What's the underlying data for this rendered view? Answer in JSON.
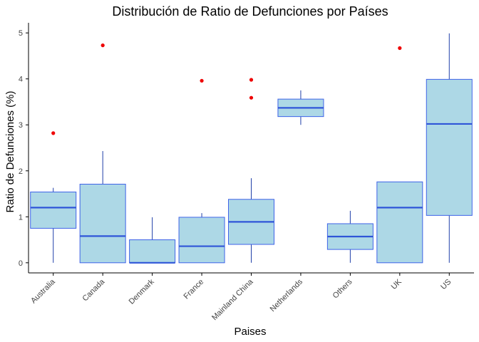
{
  "chart_data": {
    "type": "boxplot",
    "title": "Distribución de Ratio de Defunciones por Países",
    "xlabel": "Paises",
    "ylabel": "Ratio de Defunciones (%)",
    "ylim": [
      -0.22,
      5.22
    ],
    "yticks": [
      0,
      1,
      2,
      3,
      4,
      5
    ],
    "grid": false,
    "colors": {
      "box_fill": "#add8e6",
      "box_stroke": "#3f63e8",
      "median": "#2f55d8",
      "whisker": "#1f3fa8",
      "outlier": "#ee0000",
      "axis": "#000000"
    },
    "categories": [
      "Australia",
      "Canada",
      "Denmark",
      "France",
      "Mainland China",
      "Netherlands",
      "Others",
      "UK",
      "US"
    ],
    "boxes": [
      {
        "category": "Australia",
        "whisker_low": 0.0,
        "q1": 0.75,
        "median": 1.2,
        "q3": 1.54,
        "whisker_high": 1.63,
        "outliers": [
          2.82
        ]
      },
      {
        "category": "Canada",
        "whisker_low": 0.0,
        "q1": 0.0,
        "median": 0.58,
        "q3": 1.71,
        "whisker_high": 2.43,
        "outliers": [
          4.73
        ]
      },
      {
        "category": "Denmark",
        "whisker_low": 0.0,
        "q1": 0.0,
        "median": 0.0,
        "q3": 0.5,
        "whisker_high": 0.99,
        "outliers": []
      },
      {
        "category": "France",
        "whisker_low": 0.0,
        "q1": 0.0,
        "median": 0.36,
        "q3": 0.99,
        "whisker_high": 1.08,
        "outliers": [
          3.96
        ]
      },
      {
        "category": "Mainland China",
        "whisker_low": 0.0,
        "q1": 0.4,
        "median": 0.89,
        "q3": 1.38,
        "whisker_high": 1.84,
        "outliers": [
          3.59,
          3.98
        ]
      },
      {
        "category": "Netherlands",
        "whisker_low": 3.0,
        "q1": 3.18,
        "median": 3.37,
        "q3": 3.56,
        "whisker_high": 3.75,
        "outliers": []
      },
      {
        "category": "Others",
        "whisker_low": 0.0,
        "q1": 0.29,
        "median": 0.57,
        "q3": 0.85,
        "whisker_high": 1.13,
        "outliers": []
      },
      {
        "category": "UK",
        "whisker_low": 0.0,
        "q1": 0.0,
        "median": 1.2,
        "q3": 1.76,
        "whisker_high": 1.76,
        "outliers": [
          4.67
        ]
      },
      {
        "category": "US",
        "whisker_low": 0.0,
        "q1": 1.03,
        "median": 3.02,
        "q3": 3.99,
        "whisker_high": 4.99,
        "outliers": []
      }
    ]
  }
}
